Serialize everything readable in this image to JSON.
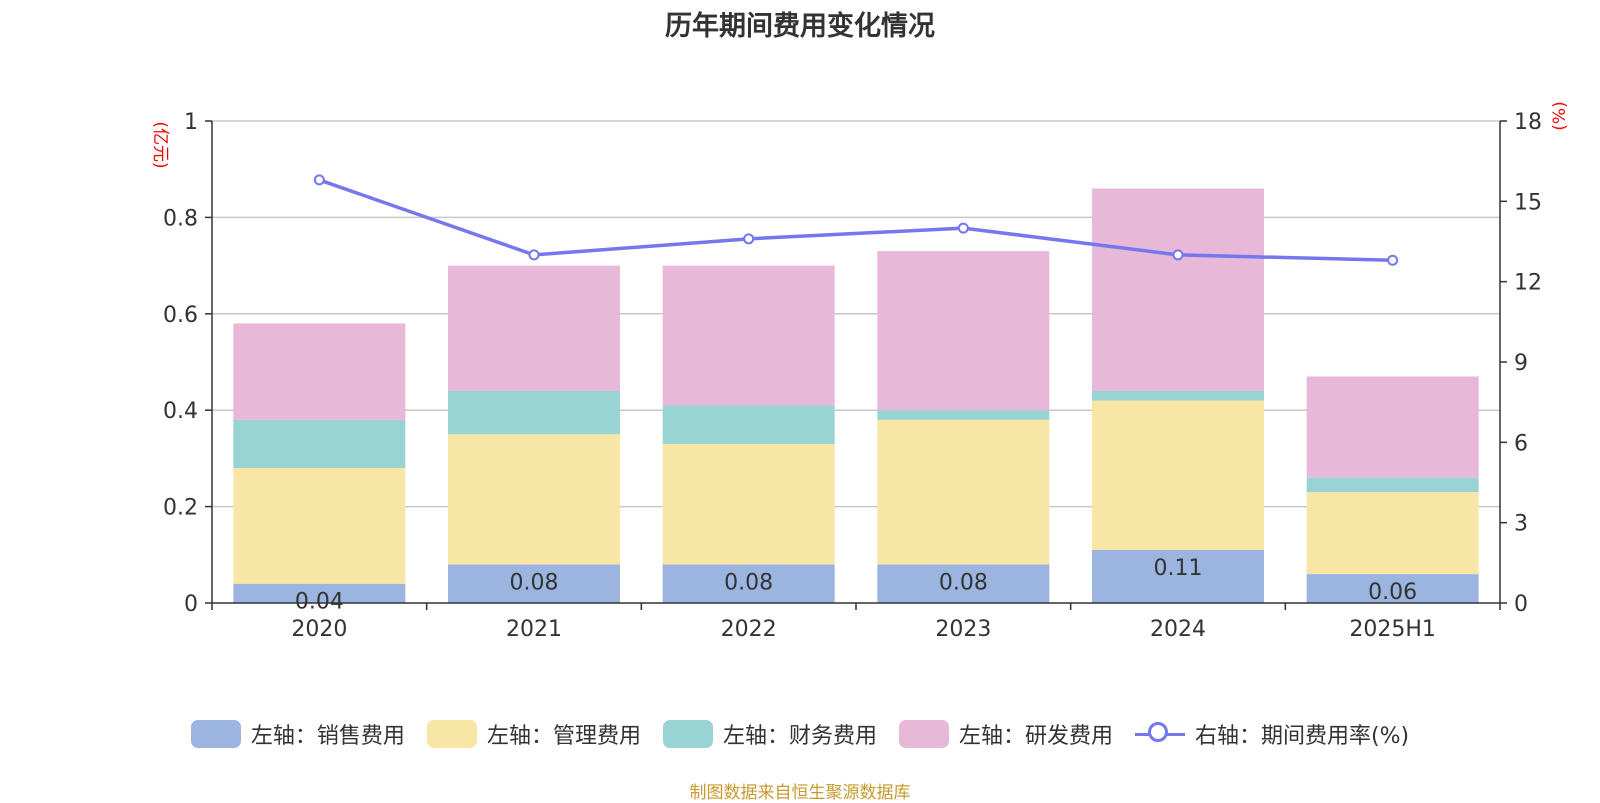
{
  "title": "历年期间费用变化情况",
  "source_note": "制图数据来自恒生聚源数据库",
  "chart_data": {
    "type": "bar",
    "stacked": true,
    "categories": [
      "2020",
      "2021",
      "2022",
      "2023",
      "2024",
      "2025H1"
    ],
    "y_left": {
      "label": "(亿元)",
      "ylim": [
        0,
        1
      ],
      "ticks": [
        "0",
        "0.2",
        "0.4",
        "0.6",
        "0.8",
        "1"
      ],
      "label_color": "#ff0000"
    },
    "y_right": {
      "label": "(%)",
      "ylim": [
        0,
        18
      ],
      "ticks": [
        "0",
        "3",
        "6",
        "9",
        "12",
        "15",
        "18"
      ],
      "label_color": "#ff0000"
    },
    "grid": true,
    "legend_position": "bottom",
    "series": [
      {
        "name": "左轴：销售费用",
        "type": "bar",
        "axis": "left",
        "color": "#9bb5e0",
        "values": [
          0.04,
          0.08,
          0.08,
          0.08,
          0.11,
          0.06
        ],
        "data_labels": [
          "0.04",
          "0.08",
          "0.08",
          "0.08",
          "0.11",
          "0.06"
        ]
      },
      {
        "name": "左轴：管理费用",
        "type": "bar",
        "axis": "left",
        "color": "#f8e6a6",
        "values": [
          0.24,
          0.27,
          0.25,
          0.3,
          0.31,
          0.17
        ]
      },
      {
        "name": "左轴：财务费用",
        "type": "bar",
        "axis": "left",
        "color": "#99d4d4",
        "values": [
          0.1,
          0.09,
          0.08,
          0.02,
          0.02,
          0.03
        ]
      },
      {
        "name": "左轴：研发费用",
        "type": "bar",
        "axis": "left",
        "color": "#e8b8d9",
        "values": [
          0.2,
          0.26,
          0.29,
          0.33,
          0.42,
          0.21
        ]
      },
      {
        "name": "右轴：期间费用率(%)",
        "type": "line",
        "axis": "right",
        "color": "#7477ee",
        "values": [
          15.8,
          13.0,
          13.6,
          14.0,
          13.0,
          12.8
        ]
      }
    ]
  }
}
